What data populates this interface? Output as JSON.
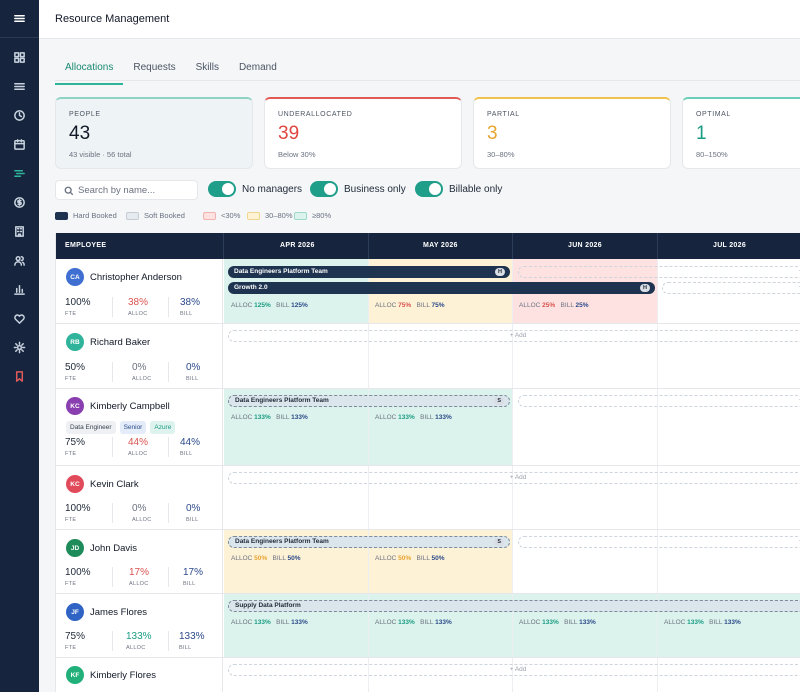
{
  "app": {
    "title": "Resource Management"
  },
  "tabs": [
    "Allocations",
    "Requests",
    "Skills",
    "Demand"
  ],
  "cards": [
    {
      "label": "PEOPLE",
      "value": "43",
      "sub": "43 visible · 56 total",
      "color": "#111827",
      "accent": "#8fd3c5"
    },
    {
      "label": "UNDERALLOCATED",
      "value": "39",
      "sub": "Below 30%",
      "color": "#e0463f",
      "accent": "#e25a55"
    },
    {
      "label": "PARTIAL",
      "value": "3",
      "sub": "30–80%",
      "color": "#e8a531",
      "accent": "#f2c14e"
    },
    {
      "label": "OPTIMAL",
      "value": "1",
      "sub": "80–150%",
      "color": "#1a9c84",
      "accent": "#6bcdb8"
    }
  ],
  "search": {
    "placeholder": "Search by name..."
  },
  "toggles": [
    "No managers",
    "Business only",
    "Billable only"
  ],
  "legend": [
    "Hard Booked",
    "Soft Booked",
    "<30%",
    "30–80%",
    "≥80%"
  ],
  "grid": {
    "employee_header": "EMPLOYEE",
    "months": [
      "APR 2026",
      "MAY 2026",
      "JUN 2026",
      "JUL 2026"
    ],
    "add_label": "+ Add",
    "plus": "+",
    "fte_label": "FTE",
    "alloc_label": "ALLOC",
    "bill_label": "BILL"
  },
  "rows": [
    {
      "initials": "CA",
      "name": "Christopher Anderson",
      "fte": "100%",
      "alloc": "38%",
      "bill": "38%",
      "bars": [
        {
          "label": "Data Engineers Platform Team",
          "badge": "H"
        },
        {
          "label": "Growth 2.0",
          "badge": "H"
        }
      ],
      "monthly": [
        {
          "alloc": "125%",
          "bill": "125%"
        },
        {
          "alloc": "75%",
          "bill": "75%"
        },
        {
          "alloc": "25%",
          "bill": "25%"
        }
      ]
    },
    {
      "initials": "RB",
      "name": "Richard Baker",
      "fte": "50%",
      "alloc": "0%",
      "bill": "0%"
    },
    {
      "initials": "KC",
      "name": "Kimberly Campbell",
      "fte": "75%",
      "alloc": "44%",
      "bill": "44%",
      "tags": [
        "Data Engineer",
        "Senior",
        "Azure"
      ],
      "bars": [
        {
          "label": "Data Engineers Platform Team",
          "badge": "S"
        }
      ],
      "monthly": [
        {
          "alloc": "133%",
          "bill": "133%"
        },
        {
          "alloc": "133%",
          "bill": "133%"
        }
      ]
    },
    {
      "initials": "KC",
      "name": "Kevin Clark",
      "fte": "100%",
      "alloc": "0%",
      "bill": "0%"
    },
    {
      "initials": "JD",
      "name": "John Davis",
      "fte": "100%",
      "alloc": "17%",
      "bill": "17%",
      "bars": [
        {
          "label": "Data Engineers Platform Team",
          "badge": "S"
        }
      ],
      "monthly": [
        {
          "alloc": "50%",
          "bill": "50%"
        },
        {
          "alloc": "50%",
          "bill": "50%"
        }
      ]
    },
    {
      "initials": "JF",
      "name": "James Flores",
      "fte": "75%",
      "alloc": "133%",
      "bill": "133%",
      "bars": [
        {
          "label": "Supply Data Platform"
        }
      ],
      "monthly": [
        {
          "alloc": "133%",
          "bill": "133%"
        },
        {
          "alloc": "133%",
          "bill": "133%"
        },
        {
          "alloc": "133%",
          "bill": "133%"
        },
        {
          "alloc": "133%",
          "bill": "133%"
        }
      ]
    },
    {
      "initials": "KF",
      "name": "Kimberly Flores"
    }
  ]
}
